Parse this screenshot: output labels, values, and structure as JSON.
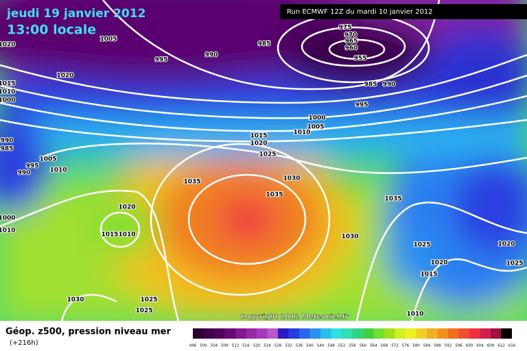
{
  "header": {
    "date": "jeudi 19 janvier 2012",
    "time": "13:00 locale",
    "run": "Run ECMWF 12Z du mardi 10 janvier 2012"
  },
  "map": {
    "copyright": "Copyright 2012 Meteociel.fr",
    "isobar_labels": [
      1020,
      1005,
      995,
      990,
      985,
      975,
      970,
      965,
      960,
      955,
      985,
      990,
      995,
      1000,
      1005,
      1010,
      1015,
      1020,
      1025,
      1020,
      1015,
      1010,
      1000,
      990,
      985,
      995,
      990,
      1005,
      1010,
      1035,
      1030,
      1035,
      1035,
      1020,
      1015,
      1010,
      1000,
      1010,
      1030,
      1025,
      1020,
      1015,
      1020,
      1025,
      1030,
      1025,
      1025,
      1010
    ]
  },
  "footer": {
    "caption": "Géop. z500, pression niveau mer",
    "lead": "(+216h)"
  },
  "scale": {
    "labels": [
      496,
      500,
      504,
      508,
      512,
      516,
      520,
      524,
      528,
      532,
      536,
      540,
      544,
      548,
      552,
      556,
      560,
      564,
      568,
      572,
      576,
      580,
      584,
      588,
      592,
      596,
      600,
      604,
      608,
      612,
      616
    ],
    "colors": [
      "#2a0030",
      "#3e0048",
      "#54005e",
      "#6a0878",
      "#801890",
      "#9628a8",
      "#a838bc",
      "#b858cc",
      "#2a1cc0",
      "#2a3ee0",
      "#2a66f0",
      "#2a92f0",
      "#2abef0",
      "#30e0e0",
      "#30e0b0",
      "#30d480",
      "#40d040",
      "#70e030",
      "#a0e020",
      "#d0f020",
      "#f0f020",
      "#f0d020",
      "#f0b020",
      "#f09020",
      "#f07020",
      "#f05030",
      "#f03040",
      "#d02050",
      "#a01040",
      "#000000"
    ]
  }
}
